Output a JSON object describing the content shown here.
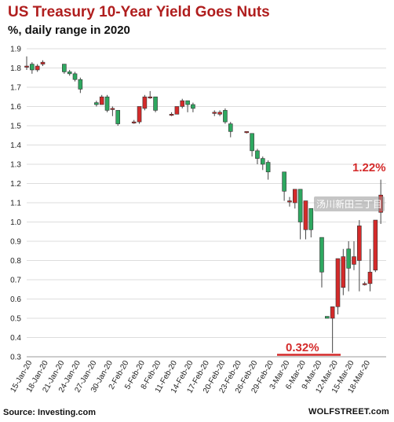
{
  "chart_data": {
    "type": "candlestick",
    "title": "US Treasury  10-Year Yield Goes Nuts",
    "subtitle": "%, daily range in 2020",
    "ylim": [
      0.3,
      1.9
    ],
    "yticks": [
      "0.3",
      "0.4",
      "0.5",
      "0.6",
      "0.7",
      "0.8",
      "0.9",
      "1.0",
      "1.1",
      "1.2",
      "1.3",
      "1.4",
      "1.5",
      "1.6",
      "1.7",
      "1.8",
      "1.9"
    ],
    "grid": true,
    "xtick_labels": [
      "15-Jan-20",
      "18-Jan-20",
      "21-Jan-20",
      "24-Jan-20",
      "27-Jan-20",
      "30-Jan-20",
      "2-Feb-20",
      "5-Feb-20",
      "8-Feb-20",
      "11-Feb-20",
      "14-Feb-20",
      "17-Feb-20",
      "20-Feb-20",
      "23-Feb-20",
      "26-Feb-20",
      "29-Feb-20",
      "3-Mar-20",
      "6-Mar-20",
      "9-Mar-20",
      "12-Mar-20",
      "15-Mar-20",
      "18-Mar-20"
    ],
    "colors": {
      "up": "#d42a2a",
      "down": "#2ea860",
      "wick": "#444444",
      "grid": "#dddddd",
      "annotation_line": "#d42a2a"
    },
    "candles": [
      {
        "date": "2020-01-14",
        "open": 1.81,
        "high": 1.86,
        "low": 1.79,
        "close": 1.81
      },
      {
        "date": "2020-01-15",
        "open": 1.82,
        "high": 1.83,
        "low": 1.77,
        "close": 1.79
      },
      {
        "date": "2020-01-16",
        "open": 1.79,
        "high": 1.82,
        "low": 1.78,
        "close": 1.81
      },
      {
        "date": "2020-01-17",
        "open": 1.82,
        "high": 1.84,
        "low": 1.81,
        "close": 1.83
      },
      {
        "date": "2020-01-21",
        "open": 1.82,
        "high": 1.82,
        "low": 1.77,
        "close": 1.78
      },
      {
        "date": "2020-01-22",
        "open": 1.78,
        "high": 1.79,
        "low": 1.76,
        "close": 1.77
      },
      {
        "date": "2020-01-23",
        "open": 1.77,
        "high": 1.78,
        "low": 1.73,
        "close": 1.74
      },
      {
        "date": "2020-01-24",
        "open": 1.74,
        "high": 1.75,
        "low": 1.67,
        "close": 1.69
      },
      {
        "date": "2020-01-27",
        "open": 1.62,
        "high": 1.63,
        "low": 1.6,
        "close": 1.61
      },
      {
        "date": "2020-01-28",
        "open": 1.61,
        "high": 1.66,
        "low": 1.61,
        "close": 1.65
      },
      {
        "date": "2020-01-29",
        "open": 1.65,
        "high": 1.66,
        "low": 1.57,
        "close": 1.58
      },
      {
        "date": "2020-01-30",
        "open": 1.59,
        "high": 1.6,
        "low": 1.55,
        "close": 1.59
      },
      {
        "date": "2020-01-31",
        "open": 1.58,
        "high": 1.58,
        "low": 1.5,
        "close": 1.51
      },
      {
        "date": "2020-02-03",
        "open": 1.52,
        "high": 1.53,
        "low": 1.51,
        "close": 1.52
      },
      {
        "date": "2020-02-04",
        "open": 1.52,
        "high": 1.6,
        "low": 1.51,
        "close": 1.6
      },
      {
        "date": "2020-02-05",
        "open": 1.59,
        "high": 1.66,
        "low": 1.58,
        "close": 1.65
      },
      {
        "date": "2020-02-06",
        "open": 1.65,
        "high": 1.68,
        "low": 1.64,
        "close": 1.65
      },
      {
        "date": "2020-02-07",
        "open": 1.65,
        "high": 1.65,
        "low": 1.57,
        "close": 1.58
      },
      {
        "date": "2020-02-10",
        "open": 1.56,
        "high": 1.57,
        "low": 1.55,
        "close": 1.56
      },
      {
        "date": "2020-02-11",
        "open": 1.56,
        "high": 1.6,
        "low": 1.56,
        "close": 1.6
      },
      {
        "date": "2020-02-12",
        "open": 1.6,
        "high": 1.64,
        "low": 1.59,
        "close": 1.63
      },
      {
        "date": "2020-02-13",
        "open": 1.63,
        "high": 1.63,
        "low": 1.57,
        "close": 1.61
      },
      {
        "date": "2020-02-14",
        "open": 1.61,
        "high": 1.62,
        "low": 1.57,
        "close": 1.59
      },
      {
        "date": "2020-02-18",
        "open": 1.57,
        "high": 1.58,
        "low": 1.55,
        "close": 1.57
      },
      {
        "date": "2020-02-19",
        "open": 1.56,
        "high": 1.58,
        "low": 1.55,
        "close": 1.57
      },
      {
        "date": "2020-02-20",
        "open": 1.58,
        "high": 1.59,
        "low": 1.51,
        "close": 1.52
      },
      {
        "date": "2020-02-21",
        "open": 1.51,
        "high": 1.52,
        "low": 1.44,
        "close": 1.47
      },
      {
        "date": "2020-02-24",
        "open": 1.47,
        "high": 1.47,
        "low": 1.46,
        "close": 1.47
      },
      {
        "date": "2020-02-25",
        "open": 1.46,
        "high": 1.46,
        "low": 1.34,
        "close": 1.37
      },
      {
        "date": "2020-02-26",
        "open": 1.37,
        "high": 1.38,
        "low": 1.3,
        "close": 1.33
      },
      {
        "date": "2020-02-27",
        "open": 1.33,
        "high": 1.34,
        "low": 1.27,
        "close": 1.3
      },
      {
        "date": "2020-02-28",
        "open": 1.31,
        "high": 1.32,
        "low": 1.22,
        "close": 1.26
      },
      {
        "date": "2020-03-02",
        "open": 1.26,
        "high": 1.26,
        "low": 1.11,
        "close": 1.16
      },
      {
        "date": "2020-03-03",
        "open": 1.11,
        "high": 1.13,
        "low": 1.08,
        "close": 1.11
      },
      {
        "date": "2020-03-04",
        "open": 1.1,
        "high": 1.17,
        "low": 1.07,
        "close": 1.17
      },
      {
        "date": "2020-03-05",
        "open": 1.17,
        "high": 1.17,
        "low": 0.91,
        "close": 1.0
      },
      {
        "date": "2020-03-06",
        "open": 0.96,
        "high": 1.11,
        "low": 0.91,
        "close": 1.11
      },
      {
        "date": "2020-03-07",
        "open": 1.07,
        "high": 1.07,
        "low": 0.92,
        "close": 0.96
      },
      {
        "date": "2020-03-09",
        "open": 0.92,
        "high": 0.92,
        "low": 0.66,
        "close": 0.74
      },
      {
        "date": "2020-03-10",
        "open": 0.51,
        "high": 0.51,
        "low": 0.5,
        "close": 0.5
      },
      {
        "date": "2020-03-11",
        "open": 0.5,
        "high": 0.56,
        "low": 0.32,
        "close": 0.56
      },
      {
        "date": "2020-03-12",
        "open": 0.56,
        "high": 0.81,
        "low": 0.52,
        "close": 0.81
      },
      {
        "date": "2020-03-13",
        "open": 0.66,
        "high": 0.86,
        "low": 0.62,
        "close": 0.82
      },
      {
        "date": "2020-03-14",
        "open": 0.86,
        "high": 0.9,
        "low": 0.64,
        "close": 0.76
      },
      {
        "date": "2020-03-15",
        "open": 0.78,
        "high": 0.9,
        "low": 0.75,
        "close": 0.82
      },
      {
        "date": "2020-03-16",
        "open": 0.8,
        "high": 1.01,
        "low": 0.64,
        "close": 0.98
      },
      {
        "date": "2020-03-17",
        "open": 0.68,
        "high": 0.69,
        "low": 0.67,
        "close": 0.68
      },
      {
        "date": "2020-03-18",
        "open": 0.68,
        "high": 0.86,
        "low": 0.64,
        "close": 0.74
      },
      {
        "date": "2020-03-19",
        "open": 0.75,
        "high": 1.01,
        "low": 0.74,
        "close": 1.01
      },
      {
        "date": "2020-03-20",
        "open": 1.05,
        "high": 1.22,
        "low": 0.99,
        "close": 1.14
      }
    ],
    "annotations": [
      {
        "text": "1.22%",
        "value": 1.22
      },
      {
        "text": "0.32%",
        "value": 0.32
      }
    ]
  },
  "footer": {
    "source": "Source: Investing.com",
    "brand": "WOLFSTREET.com"
  },
  "watermark": "汤川新田三丁目"
}
